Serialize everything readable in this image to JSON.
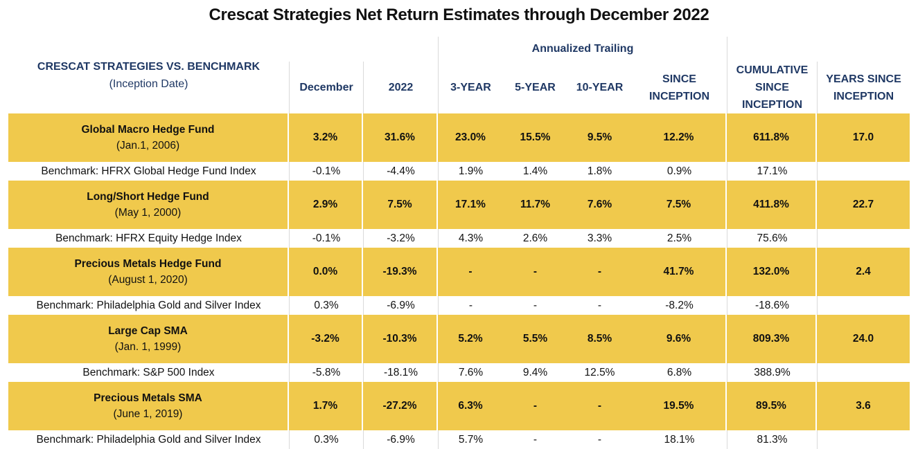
{
  "title": "Crescat Strategies Net Return Estimates through December 2022",
  "header": {
    "annualized_trailing": "Annualized Trailing",
    "label_main": "CRESCAT STRATEGIES VS. BENCHMARK",
    "label_sub": "(Inception Date)",
    "columns": [
      "December",
      "2022",
      "3-YEAR",
      "5-YEAR",
      "10-YEAR",
      "SINCE INCEPTION",
      "CUMULATIVE SINCE INCEPTION",
      "YEARS SINCE INCEPTION"
    ]
  },
  "rows": [
    {
      "fund": {
        "name": "Global Macro Hedge Fund",
        "date": "(Jan.1, 2006)",
        "values": [
          "3.2%",
          "31.6%",
          "23.0%",
          "15.5%",
          "9.5%",
          "12.2%",
          "611.8%",
          "17.0"
        ]
      },
      "benchmark": {
        "name": "Benchmark: HFRX Global Hedge Fund Index",
        "values": [
          "-0.1%",
          "-4.4%",
          "1.9%",
          "1.4%",
          "1.8%",
          "0.9%",
          "17.1%",
          ""
        ]
      }
    },
    {
      "fund": {
        "name": "Long/Short Hedge Fund",
        "date": "(May 1, 2000)",
        "values": [
          "2.9%",
          "7.5%",
          "17.1%",
          "11.7%",
          "7.6%",
          "7.5%",
          "411.8%",
          "22.7"
        ]
      },
      "benchmark": {
        "name": "Benchmark: HFRX Equity Hedge Index",
        "values": [
          "-0.1%",
          "-3.2%",
          "4.3%",
          "2.6%",
          "3.3%",
          "2.5%",
          "75.6%",
          ""
        ]
      }
    },
    {
      "fund": {
        "name": "Precious Metals Hedge Fund",
        "date": "(August 1, 2020)",
        "values": [
          "0.0%",
          "-19.3%",
          "-",
          "-",
          "-",
          "41.7%",
          "132.0%",
          "2.4"
        ]
      },
      "benchmark": {
        "name": "Benchmark: Philadelphia Gold and Silver Index",
        "values": [
          "0.3%",
          "-6.9%",
          "-",
          "-",
          "-",
          "-8.2%",
          "-18.6%",
          ""
        ]
      }
    },
    {
      "fund": {
        "name": "Large Cap SMA",
        "date": "(Jan. 1, 1999)",
        "values": [
          "-3.2%",
          "-10.3%",
          "5.2%",
          "5.5%",
          "8.5%",
          "9.6%",
          "809.3%",
          "24.0"
        ]
      },
      "benchmark": {
        "name": "Benchmark: S&P 500 Index",
        "values": [
          "-5.8%",
          "-18.1%",
          "7.6%",
          "9.4%",
          "12.5%",
          "6.8%",
          "388.9%",
          ""
        ]
      }
    },
    {
      "fund": {
        "name": "Precious Metals SMA",
        "date": "(June 1, 2019)",
        "values": [
          "1.7%",
          "-27.2%",
          "6.3%",
          "-",
          "-",
          "19.5%",
          "89.5%",
          "3.6"
        ]
      },
      "benchmark": {
        "name": "Benchmark: Philadelphia Gold and Silver Index",
        "values": [
          "0.3%",
          "-6.9%",
          "5.7%",
          "-",
          "-",
          "18.1%",
          "81.3%",
          ""
        ]
      }
    }
  ]
}
